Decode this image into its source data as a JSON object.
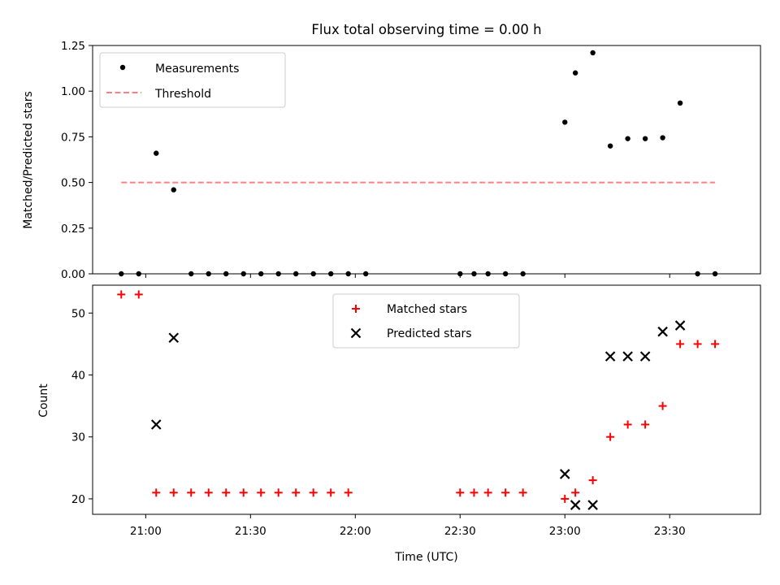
{
  "chart_data": [
    {
      "type": "scatter",
      "title": "Flux total observing time = 0.00 h",
      "xlabel": "",
      "ylabel": "Matched/Predicted stars",
      "ylim": [
        0.0,
        1.25
      ],
      "yticks": [
        "0.00",
        "0.25",
        "0.50",
        "0.75",
        "1.00",
        "1.25"
      ],
      "legend_position": "upper-left",
      "series": [
        {
          "name": "Measurements",
          "marker": "dot",
          "color": "#000000",
          "points": [
            [
              "20:53",
              0.0
            ],
            [
              "20:58",
              0.0
            ],
            [
              "21:03",
              0.66
            ],
            [
              "21:08",
              0.46
            ],
            [
              "21:13",
              0.0
            ],
            [
              "21:18",
              0.0
            ],
            [
              "21:23",
              0.0
            ],
            [
              "21:28",
              0.0
            ],
            [
              "21:33",
              0.0
            ],
            [
              "21:38",
              0.0
            ],
            [
              "21:43",
              0.0
            ],
            [
              "21:48",
              0.0
            ],
            [
              "21:53",
              0.0
            ],
            [
              "21:58",
              0.0
            ],
            [
              "22:03",
              0.0
            ],
            [
              "22:30",
              0.0
            ],
            [
              "22:34",
              0.0
            ],
            [
              "22:38",
              0.0
            ],
            [
              "22:43",
              0.0
            ],
            [
              "22:48",
              0.0
            ],
            [
              "23:00",
              0.83
            ],
            [
              "23:03",
              1.1
            ],
            [
              "23:08",
              1.21
            ],
            [
              "23:13",
              0.7
            ],
            [
              "23:18",
              0.74
            ],
            [
              "23:23",
              0.74
            ],
            [
              "23:28",
              0.745
            ],
            [
              "23:33",
              0.935
            ],
            [
              "23:38",
              0.0
            ],
            [
              "23:43",
              0.0
            ]
          ]
        },
        {
          "name": "Threshold",
          "marker": "dashed-line",
          "color": "#ff8080",
          "points": [
            [
              "20:53",
              0.5
            ],
            [
              "23:43",
              0.5
            ]
          ]
        }
      ]
    },
    {
      "type": "scatter",
      "title": "",
      "xlabel": "Time (UTC)",
      "ylabel": "Count",
      "ylim": [
        17.5,
        54.5
      ],
      "yticks": [
        "20",
        "30",
        "40",
        "50"
      ],
      "xticks": [
        "21:00",
        "21:30",
        "22:00",
        "22:30",
        "23:00",
        "23:30"
      ],
      "legend_position": "upper-center",
      "series": [
        {
          "name": "Matched stars",
          "marker": "plus",
          "color": "#ff0000",
          "points": [
            [
              "20:53",
              53
            ],
            [
              "20:58",
              53
            ],
            [
              "21:03",
              21
            ],
            [
              "21:08",
              21
            ],
            [
              "21:13",
              21
            ],
            [
              "21:18",
              21
            ],
            [
              "21:23",
              21
            ],
            [
              "21:28",
              21
            ],
            [
              "21:33",
              21
            ],
            [
              "21:38",
              21
            ],
            [
              "21:43",
              21
            ],
            [
              "21:48",
              21
            ],
            [
              "21:53",
              21
            ],
            [
              "21:58",
              21
            ],
            [
              "22:30",
              21
            ],
            [
              "22:34",
              21
            ],
            [
              "22:38",
              21
            ],
            [
              "22:43",
              21
            ],
            [
              "22:48",
              21
            ],
            [
              "23:00",
              20
            ],
            [
              "23:03",
              21
            ],
            [
              "23:08",
              23
            ],
            [
              "23:13",
              30
            ],
            [
              "23:18",
              32
            ],
            [
              "23:23",
              32
            ],
            [
              "23:28",
              35
            ],
            [
              "23:33",
              45
            ],
            [
              "23:38",
              45
            ],
            [
              "23:43",
              45
            ]
          ]
        },
        {
          "name": "Predicted stars",
          "marker": "x",
          "color": "#000000",
          "points": [
            [
              "21:03",
              32
            ],
            [
              "21:08",
              46
            ],
            [
              "23:00",
              24
            ],
            [
              "23:03",
              19
            ],
            [
              "23:08",
              19
            ],
            [
              "23:13",
              43
            ],
            [
              "23:18",
              43
            ],
            [
              "23:23",
              43
            ],
            [
              "23:28",
              47
            ],
            [
              "23:33",
              48
            ]
          ]
        }
      ]
    }
  ]
}
